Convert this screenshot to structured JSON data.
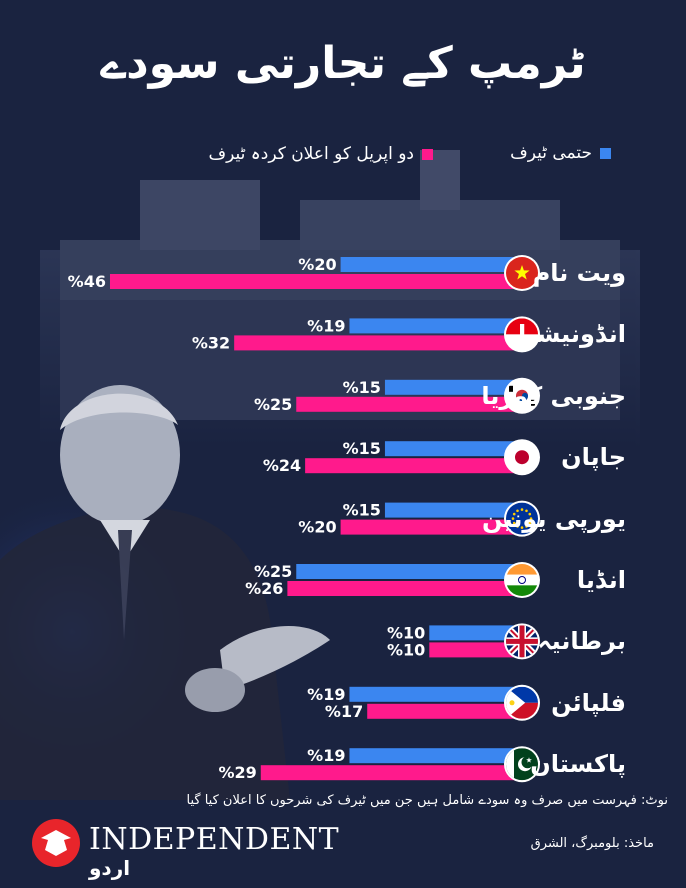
{
  "title": "ٹرمپ کے تجارتی سودے",
  "legend": {
    "final": "حتمی ٹیرف",
    "announced": "دو اپریل کو اعلان کردہ ٹیرف"
  },
  "colors": {
    "final": "#3b86f0",
    "announced": "#ff1a8c",
    "background": "#1a2340"
  },
  "chart_data": {
    "type": "bar",
    "orientation": "horizontal",
    "categories": [
      "ویت نام",
      "انڈونیشیا",
      "جنوبی کوریا",
      "جاپان",
      "یورپی یونین",
      "انڈیا",
      "برطانیہ",
      "فلپائن",
      "پاکستان"
    ],
    "flags": [
      "vietnam-flag-icon",
      "indonesia-flag-icon",
      "south-korea-flag-icon",
      "japan-flag-icon",
      "eu-flag-icon",
      "india-flag-icon",
      "uk-flag-icon",
      "philippines-flag-icon",
      "pakistan-flag-icon"
    ],
    "series": [
      {
        "name": "حتمی ٹیرف",
        "values": [
          20,
          19,
          15,
          15,
          15,
          25,
          10,
          19,
          19
        ],
        "labels": [
          "%20",
          "%19",
          "%15",
          "%15",
          "%15",
          "%25",
          "%10",
          "%19",
          "%19"
        ]
      },
      {
        "name": "دو اپریل کو اعلان کردہ ٹیرف",
        "values": [
          46,
          32,
          25,
          24,
          20,
          26,
          10,
          17,
          29
        ],
        "labels": [
          "%46",
          "%32",
          "%25",
          "%24",
          "%20",
          "%26",
          "%10",
          "%17",
          "%29"
        ]
      }
    ],
    "value_axis": "right-aligned, bars grow leftward",
    "legend_position": "top"
  },
  "note": "نوٹ: فہرست میں صرف وہ سودے شامل ہیں جن میں ٹیرف کی شرحوں کا اعلان کیا گیا",
  "source": "ماخذ: بلومبرگ، الشرق",
  "logo": {
    "name": "INDEPENDENT",
    "sub": "اردو"
  }
}
